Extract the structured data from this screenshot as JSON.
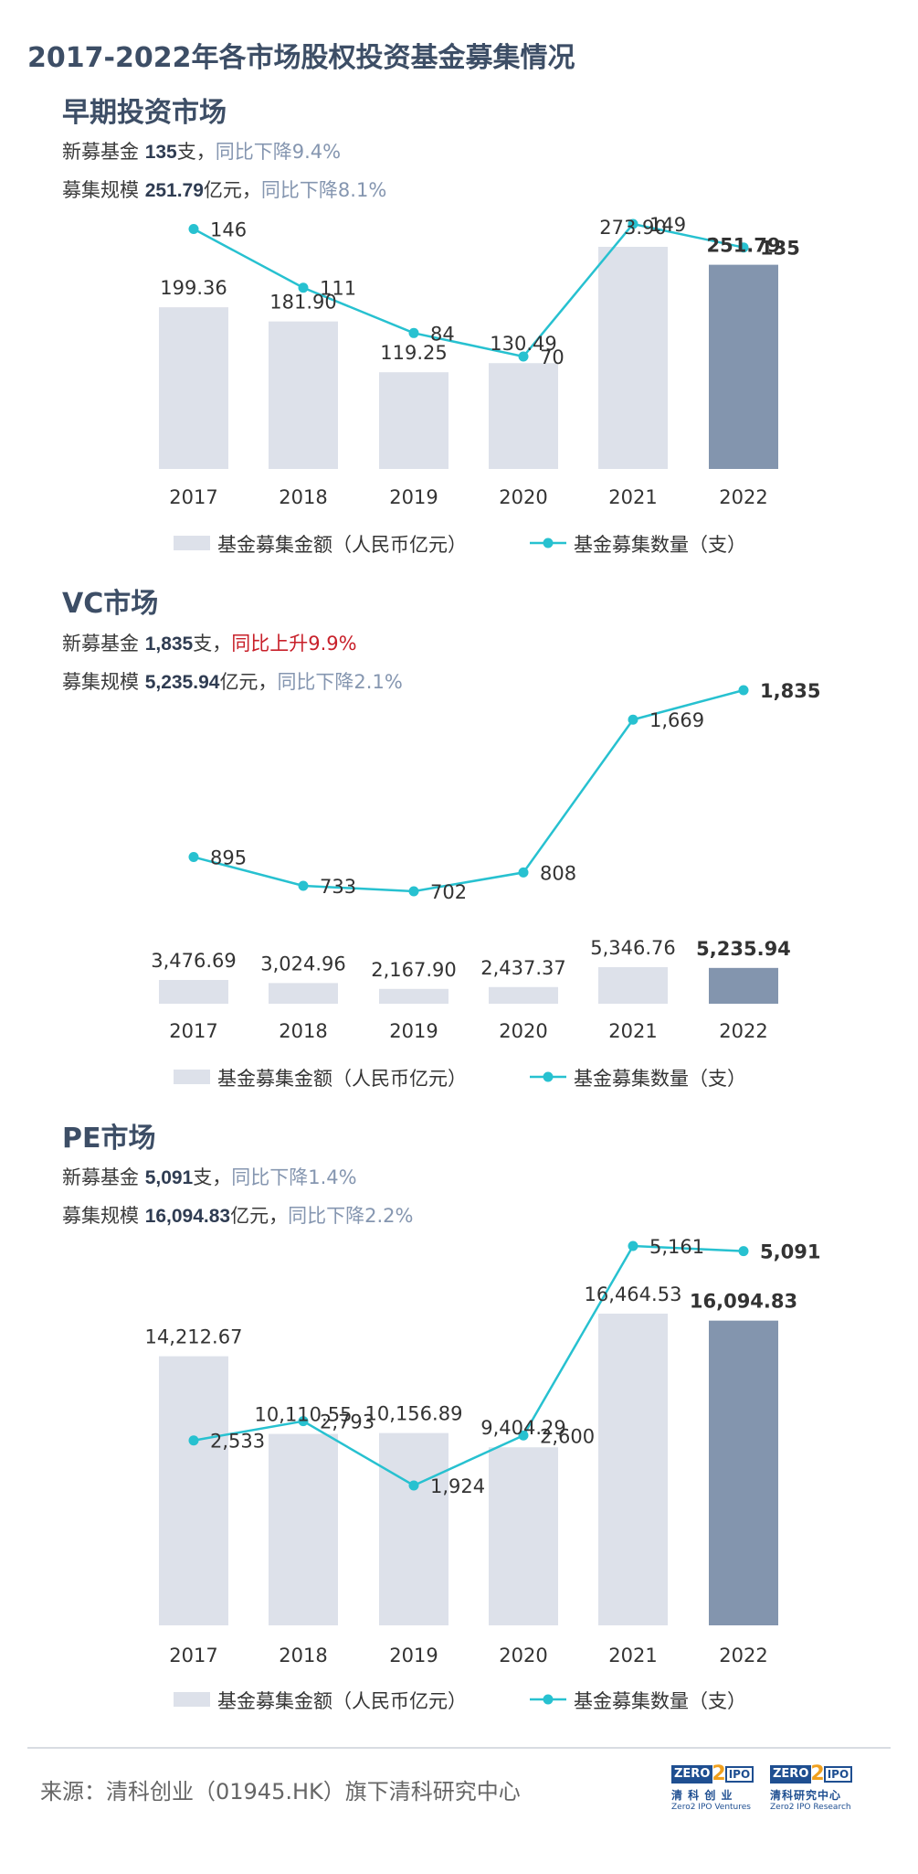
{
  "title": "2017-2022年各市场股权投资基金募集情况",
  "colors": {
    "bar": "#dde1ea",
    "bar_highlight": "#8395ae",
    "line": "#27c1d0",
    "title": "#3d4e66",
    "up": "#c8202a",
    "down": "#8596b0"
  },
  "sections": [
    {
      "heading": "早期投资市场",
      "stats": {
        "funds_prefix": "新募基金 ",
        "funds_value": "135",
        "funds_suffix": "支，",
        "funds_change": "同比下降9.4%",
        "scale_prefix": "募集规模 ",
        "scale_value": "251.79",
        "scale_suffix": "亿元，",
        "scale_change": "同比下降8.1%"
      }
    },
    {
      "heading": "VC市场",
      "stats": {
        "funds_prefix": "新募基金 ",
        "funds_value": "1,835",
        "funds_suffix": "支，",
        "funds_change": "同比上升9.9%",
        "scale_prefix": "募集规模 ",
        "scale_value": "5,235.94",
        "scale_suffix": "亿元，",
        "scale_change": "同比下降2.1%"
      }
    },
    {
      "heading": "PE市场",
      "stats": {
        "funds_prefix": "新募基金 ",
        "funds_value": "5,091",
        "funds_suffix": "支，",
        "funds_change": "同比下降1.4%",
        "scale_prefix": "募集规模 ",
        "scale_value": "16,094.83",
        "scale_suffix": "亿元，",
        "scale_change": "同比下降2.2%"
      }
    }
  ],
  "chart_data": [
    {
      "type": "bar",
      "categories": [
        "2017",
        "2018",
        "2019",
        "2020",
        "2021",
        "2022"
      ],
      "series": [
        {
          "name": "基金募集金额（人民币亿元）",
          "type": "bar",
          "values": [
            199.36,
            181.9,
            119.25,
            130.49,
            273.9,
            251.79
          ],
          "labels": [
            "199.36",
            "181.90",
            "119.25",
            "130.49",
            "273.90",
            "251.79"
          ]
        },
        {
          "name": "基金募集数量（支）",
          "type": "line",
          "values": [
            146,
            111,
            84,
            70,
            149,
            135
          ],
          "labels": [
            "146",
            "111",
            "84",
            "70",
            "149",
            "135"
          ]
        }
      ],
      "legend": "bottom",
      "highlight_category": "2022"
    },
    {
      "type": "bar",
      "categories": [
        "2017",
        "2018",
        "2019",
        "2020",
        "2021",
        "2022"
      ],
      "series": [
        {
          "name": "基金募集金额（人民币亿元）",
          "type": "bar",
          "values": [
            3476.69,
            3024.96,
            2167.9,
            2437.37,
            5346.76,
            5235.94
          ],
          "labels": [
            "3,476.69",
            "3,024.96",
            "2,167.90",
            "2,437.37",
            "5,346.76",
            "5,235.94"
          ]
        },
        {
          "name": "基金募集数量（支）",
          "type": "line",
          "values": [
            895,
            733,
            702,
            808,
            1669,
            1835
          ],
          "labels": [
            "895",
            "733",
            "702",
            "808",
            "1,669",
            "1,835"
          ]
        }
      ],
      "legend": "bottom",
      "highlight_category": "2022"
    },
    {
      "type": "bar",
      "categories": [
        "2017",
        "2018",
        "2019",
        "2020",
        "2021",
        "2022"
      ],
      "series": [
        {
          "name": "基金募集金额（人民币亿元）",
          "type": "bar",
          "values": [
            14212.67,
            10110.55,
            10156.89,
            9404.29,
            16464.53,
            16094.83
          ],
          "labels": [
            "14,212.67",
            "10,110.55",
            "10,156.89",
            "9,404.29",
            "16,464.53",
            "16,094.83"
          ]
        },
        {
          "name": "基金募集数量（支）",
          "type": "line",
          "values": [
            2533,
            2793,
            1924,
            2600,
            5161,
            5091
          ],
          "labels": [
            "2,533",
            "2,793",
            "1,924",
            "2,600",
            "5,161",
            "5,091"
          ]
        }
      ],
      "legend": "bottom",
      "highlight_category": "2022"
    }
  ],
  "footer": {
    "source": "来源：清科创业（01945.HK）旗下清科研究中心",
    "logos": [
      {
        "brand_left": "ZERO",
        "brand_mid": "2",
        "brand_right": "IPO",
        "cn": "清 科 创 业",
        "en": "Zero2 IPO Ventures"
      },
      {
        "brand_left": "ZERO",
        "brand_mid": "2",
        "brand_right": "IPO",
        "cn": "清科研究中心",
        "en": "Zero2 IPO Research"
      }
    ]
  }
}
